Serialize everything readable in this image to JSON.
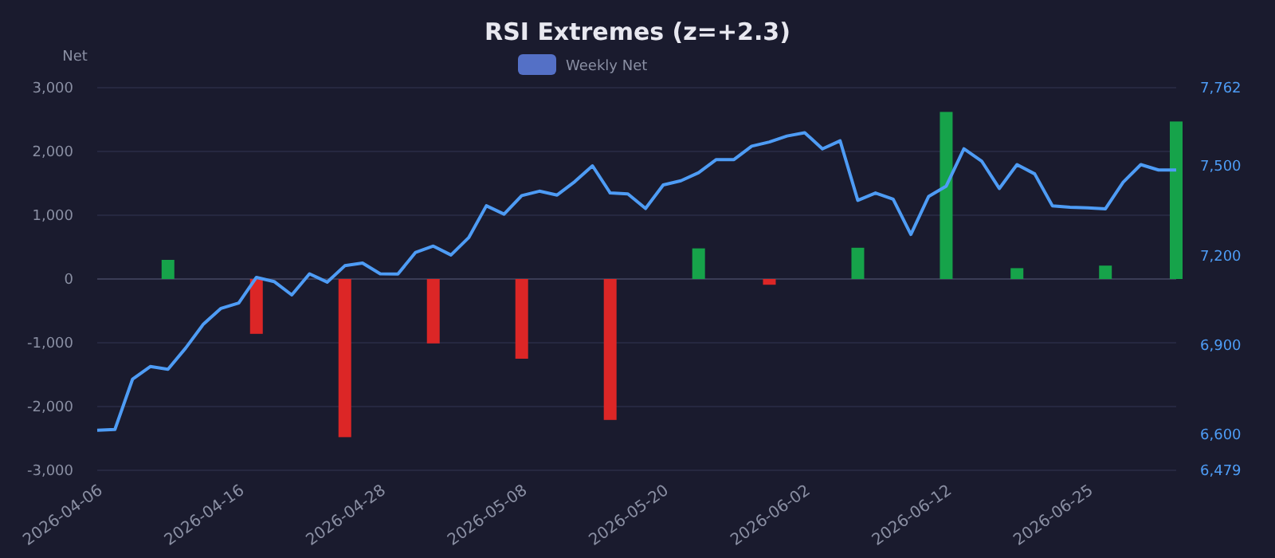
{
  "chart_data": {
    "type": "bar",
    "title": "RSI Extremes (z=+2.3)",
    "ylabel": "Net",
    "categories": [
      "2026-04-06",
      null,
      null,
      null,
      null,
      null,
      null,
      null,
      "2026-04-16",
      null,
      null,
      null,
      null,
      null,
      null,
      null,
      "2026-04-28",
      null,
      null,
      null,
      null,
      null,
      null,
      null,
      "2026-05-08",
      null,
      null,
      null,
      null,
      null,
      null,
      null,
      "2026-05-20",
      null,
      null,
      null,
      null,
      null,
      null,
      null,
      "2026-06-02",
      null,
      null,
      null,
      null,
      null,
      null,
      null,
      "2026-06-12",
      null,
      null,
      null,
      null,
      null,
      null,
      null,
      "2026-06-25",
      null,
      null,
      null,
      null,
      null
    ],
    "series": [
      {
        "name": "Weekly Net",
        "color": "#5470c6",
        "values": [
          null,
          null,
          null,
          null,
          300,
          null,
          null,
          null,
          null,
          -860,
          null,
          null,
          null,
          null,
          -2480,
          null,
          null,
          null,
          null,
          -1010,
          null,
          null,
          null,
          null,
          -1250,
          null,
          null,
          null,
          null,
          -2210,
          null,
          null,
          null,
          null,
          480,
          null,
          null,
          null,
          -90,
          null,
          null,
          null,
          null,
          490,
          null,
          null,
          null,
          null,
          2620,
          null,
          null,
          null,
          170,
          null,
          null,
          null,
          null,
          210,
          null,
          null,
          null,
          2470
        ],
        "colors": [
          null,
          null,
          null,
          null,
          "#16a34a",
          null,
          null,
          null,
          null,
          "#dc2626",
          null,
          null,
          null,
          null,
          "#dc2626",
          null,
          null,
          null,
          null,
          "#dc2626",
          null,
          null,
          null,
          null,
          "#dc2626",
          null,
          null,
          null,
          null,
          "#dc2626",
          null,
          null,
          null,
          null,
          "#16a34a",
          null,
          null,
          null,
          "#dc2626",
          null,
          null,
          null,
          null,
          "#16a34a",
          null,
          null,
          null,
          null,
          "#16a34a",
          null,
          null,
          null,
          "#16a34a",
          null,
          null,
          null,
          null,
          "#16a34a",
          null,
          null,
          null,
          "#16a34a"
        ]
      },
      {
        "type": "line",
        "axis": "y2",
        "color": "#4e9cf5",
        "values": [
          6613,
          6616,
          6785,
          6827,
          6818,
          6889,
          6969,
          7022,
          7040,
          7126,
          7112,
          7067,
          7138,
          7110,
          7165,
          7174,
          7138,
          7137,
          7210,
          7231,
          7201,
          7259,
          7366,
          7338,
          7400,
          7415,
          7402,
          7447,
          7500,
          7409,
          7406,
          7357,
          7436,
          7450,
          7477,
          7521,
          7521,
          7566,
          7580,
          7600,
          7611,
          7557,
          7584,
          7384,
          7409,
          7388,
          7270,
          7397,
          7432,
          7557,
          7516,
          7424,
          7504,
          7473,
          7366,
          7361,
          7359,
          7356,
          7445,
          7504,
          7486,
          7486
        ]
      }
    ],
    "ylim": [
      -3000,
      3000
    ],
    "yticks": [
      {
        "value": -3000,
        "label": "-3,000"
      },
      {
        "value": -2000,
        "label": "-2,000"
      },
      {
        "value": -1000,
        "label": "-1,000"
      },
      0,
      {
        "value": 1000,
        "label": "1,000"
      },
      {
        "value": 2000,
        "label": "2,000"
      },
      {
        "value": 3000,
        "label": "3,000"
      }
    ],
    "y2lim": [
      6479,
      7762
    ],
    "y2ticks": [
      {
        "value": 6479,
        "label": "6,479"
      },
      {
        "value": 6600,
        "label": "6,600"
      },
      {
        "value": 6900,
        "label": "6,900"
      },
      {
        "value": 7200,
        "label": "7,200"
      },
      {
        "value": 7500,
        "label": "7,500"
      },
      {
        "value": 7762,
        "label": "7,762"
      }
    ],
    "grid": "y",
    "legend": "top",
    "marker": "none",
    "line_style": "solid"
  }
}
